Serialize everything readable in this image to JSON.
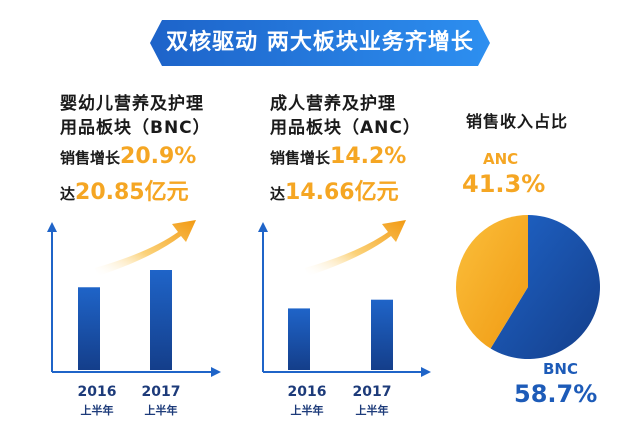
{
  "banner": {
    "title": "双核驱动 两大板块业务齐增长"
  },
  "segments": [
    {
      "title_line1": "婴幼儿营养及护理",
      "title_line2": "用品板块（BNC）",
      "growth_label": "销售增长",
      "growth_value": "20.9%",
      "revenue_label": "达",
      "revenue_value": "20.85亿元"
    },
    {
      "title_line1": "成人营养及护理",
      "title_line2": "用品板块（ANC）",
      "growth_label": "销售增长",
      "growth_value": "14.2%",
      "revenue_label": "达",
      "revenue_value": "14.66亿元"
    }
  ],
  "pie": {
    "title": "销售收入占比",
    "anc_name": "ANC",
    "anc_pct": "41.3%",
    "bnc_name": "BNC",
    "bnc_pct": "58.7%"
  },
  "colors": {
    "accent_orange": "#f5a623",
    "brand_blue": "#1d5bb8",
    "navy": "#1d3b7a"
  },
  "chart_data": [
    {
      "type": "bar",
      "categories": [
        "2016\n上半年",
        "2017\n上半年"
      ],
      "category_years": [
        "2016",
        "2017"
      ],
      "category_periods": [
        "上半年",
        "上半年"
      ],
      "series": [
        {
          "values": [
            17.25,
            20.85
          ]
        }
      ],
      "annotations": [
        "销售增长20.9%",
        "达20.85亿元"
      ]
    },
    {
      "type": "bar",
      "categories": [
        "2016\n上半年",
        "2017\n上半年"
      ],
      "category_years": [
        "2016",
        "2017"
      ],
      "category_periods": [
        "上半年",
        "上半年"
      ],
      "series": [
        {
          "values": [
            12.84,
            14.66
          ]
        }
      ],
      "annotations": [
        "销售增长14.2%",
        "达14.66亿元"
      ]
    },
    {
      "type": "pie",
      "title": "销售收入占比",
      "labels": [
        "BNC",
        "ANC"
      ],
      "values": [
        58.7,
        41.3
      ]
    }
  ]
}
